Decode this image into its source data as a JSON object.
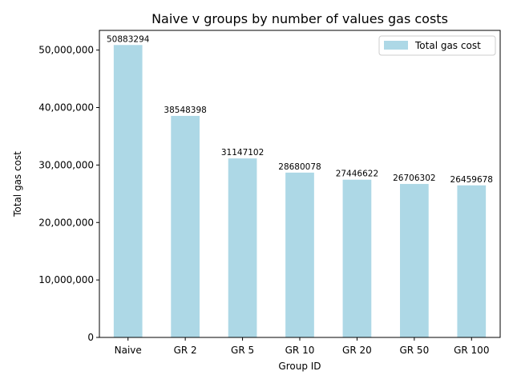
{
  "chart_data": {
    "type": "bar",
    "title": "Naive v groups by number of values gas costs",
    "xlabel": "Group ID",
    "ylabel": "Total gas cost",
    "categories": [
      "Naive",
      "GR 2",
      "GR 5",
      "GR 10",
      "GR 20",
      "GR 50",
      "GR 100"
    ],
    "series": [
      {
        "name": "Total gas cost",
        "values": [
          50883294,
          38548398,
          31147102,
          28680078,
          27446622,
          26706302,
          26459678
        ],
        "color": "#add8e6"
      }
    ],
    "data_labels": [
      "50883294",
      "38548398",
      "31147102",
      "28680078",
      "27446622",
      "26706302",
      "26459678"
    ],
    "ylim": [
      0,
      53427459
    ],
    "yticks": [
      0,
      10000000,
      20000000,
      30000000,
      40000000,
      50000000
    ],
    "ytick_labels": [
      "0",
      "10,000,000",
      "20,000,000",
      "30,000,000",
      "40,000,000",
      "50,000,000"
    ],
    "grid": false,
    "legend_position": "top-right"
  }
}
